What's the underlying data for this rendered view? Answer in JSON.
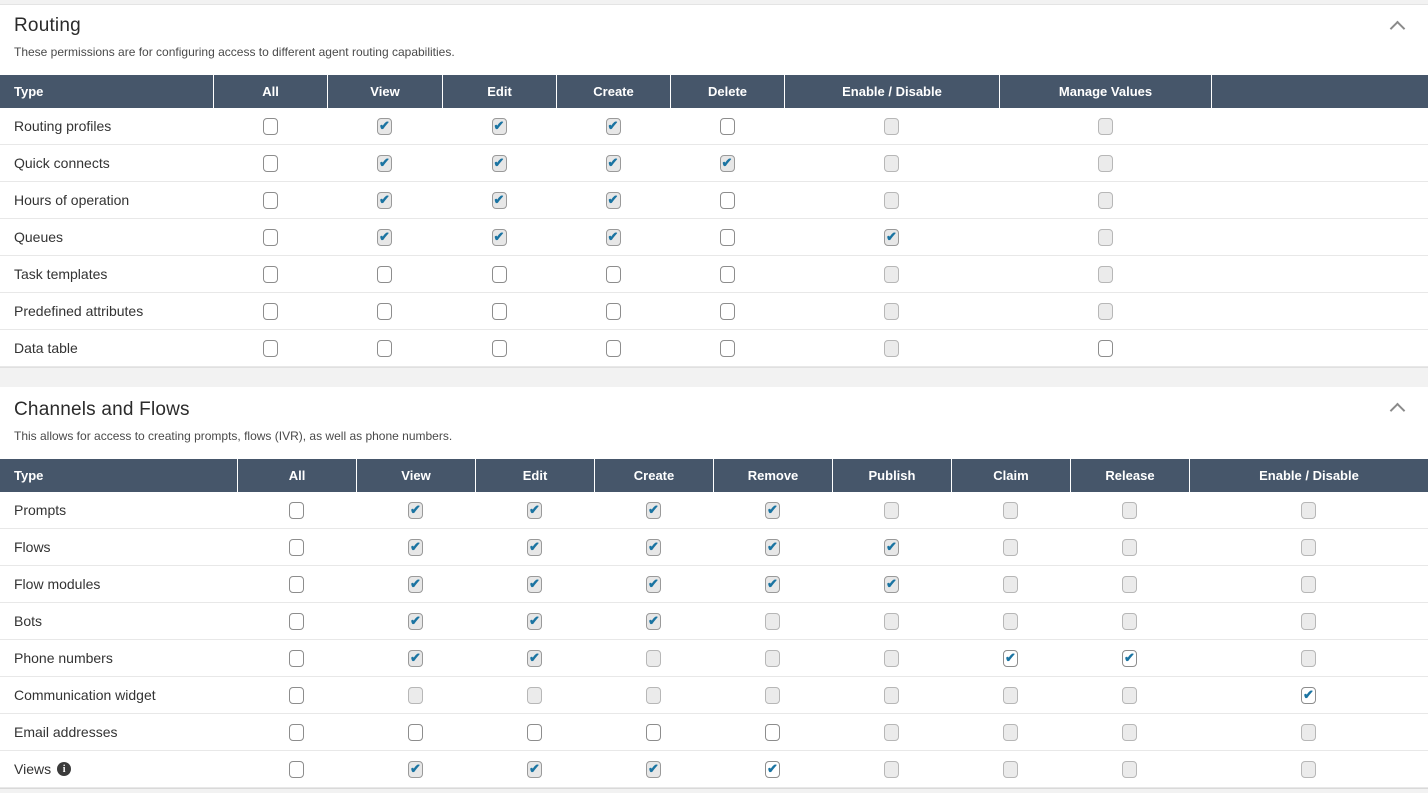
{
  "colors": {
    "table_header_bg": "#46566a",
    "check_color": "#1b74a2",
    "page_background": "#f2f2f2"
  },
  "checkbox_states": {
    "u": "unchecked",
    "c": "checked",
    "cw": "checked",
    "d": "disabled-unchecked"
  },
  "sections": [
    {
      "id": "routing",
      "title": "Routing",
      "description": "These permissions are for configuring access to different agent routing capabilities.",
      "columns": [
        "Type",
        "All",
        "View",
        "Edit",
        "Create",
        "Delete",
        "Enable / Disable",
        "Manage Values",
        ""
      ],
      "rows": [
        {
          "label": "Routing profiles",
          "cells": [
            "u",
            "c",
            "c",
            "c",
            "u",
            "d",
            "d"
          ]
        },
        {
          "label": "Quick connects",
          "cells": [
            "u",
            "c",
            "c",
            "c",
            "c",
            "d",
            "d"
          ]
        },
        {
          "label": "Hours of operation",
          "cells": [
            "u",
            "c",
            "c",
            "c",
            "u",
            "d",
            "d"
          ]
        },
        {
          "label": "Queues",
          "cells": [
            "u",
            "c",
            "c",
            "c",
            "u",
            "c",
            "d"
          ]
        },
        {
          "label": "Task templates",
          "cells": [
            "u",
            "u",
            "u",
            "u",
            "u",
            "d",
            "d"
          ]
        },
        {
          "label": "Predefined attributes",
          "cells": [
            "u",
            "u",
            "u",
            "u",
            "u",
            "d",
            "d"
          ]
        },
        {
          "label": "Data table",
          "cells": [
            "u",
            "u",
            "u",
            "u",
            "u",
            "d",
            "u"
          ]
        }
      ]
    },
    {
      "id": "channels",
      "title": "Channels and Flows",
      "description": "This allows for access to creating prompts, flows (IVR), as well as phone numbers.",
      "columns": [
        "Type",
        "All",
        "View",
        "Edit",
        "Create",
        "Remove",
        "Publish",
        "Claim",
        "Release",
        "Enable / Disable"
      ],
      "rows": [
        {
          "label": "Prompts",
          "cells": [
            "u",
            "c",
            "c",
            "c",
            "c",
            "d",
            "d",
            "d",
            "d"
          ]
        },
        {
          "label": "Flows",
          "cells": [
            "u",
            "c",
            "c",
            "c",
            "c",
            "c",
            "d",
            "d",
            "d"
          ]
        },
        {
          "label": "Flow modules",
          "cells": [
            "u",
            "c",
            "c",
            "c",
            "c",
            "c",
            "d",
            "d",
            "d"
          ]
        },
        {
          "label": "Bots",
          "cells": [
            "u",
            "c",
            "c",
            "c",
            "d",
            "d",
            "d",
            "d",
            "d"
          ]
        },
        {
          "label": "Phone numbers",
          "cells": [
            "u",
            "c",
            "c",
            "d",
            "d",
            "d",
            "cw",
            "cw",
            "d"
          ]
        },
        {
          "label": "Communication widget",
          "cells": [
            "u",
            "d",
            "d",
            "d",
            "d",
            "d",
            "d",
            "d",
            "cw"
          ]
        },
        {
          "label": "Email addresses",
          "cells": [
            "u",
            "u",
            "u",
            "u",
            "u",
            "d",
            "d",
            "d",
            "d"
          ]
        },
        {
          "label": "Views",
          "info": true,
          "cells": [
            "u",
            "c",
            "c",
            "c",
            "cw",
            "d",
            "d",
            "d",
            "d"
          ]
        }
      ]
    }
  ],
  "icons": {
    "collapse": "chevron-up",
    "views_info": "i"
  }
}
